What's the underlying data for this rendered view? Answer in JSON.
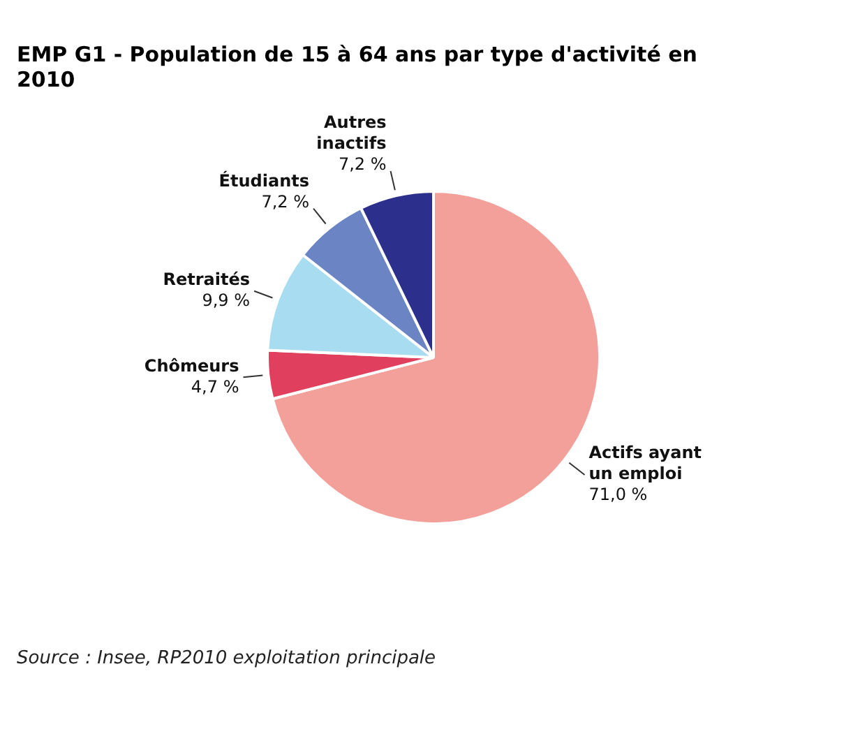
{
  "chart_data": {
    "type": "pie",
    "title": "EMP G1 - Population de 15 à 64 ans par type d'activité en 2010",
    "categories": [
      "Actifs ayant un emploi",
      "Chômeurs",
      "Retraités",
      "Étudiants",
      "Autres inactifs"
    ],
    "values": [
      71.0,
      4.7,
      9.9,
      7.2,
      7.2
    ],
    "value_labels": [
      "71,0 %",
      "4,7 %",
      "9,9 %",
      "7,2 %",
      "7,2 %"
    ],
    "colors": [
      "#f4a09a",
      "#e0405e",
      "#a8dcf0",
      "#6b84c4",
      "#2c2f8c"
    ],
    "legend": false,
    "annotations": [
      "Source : Insee, RP2010 exploitation principale"
    ]
  }
}
